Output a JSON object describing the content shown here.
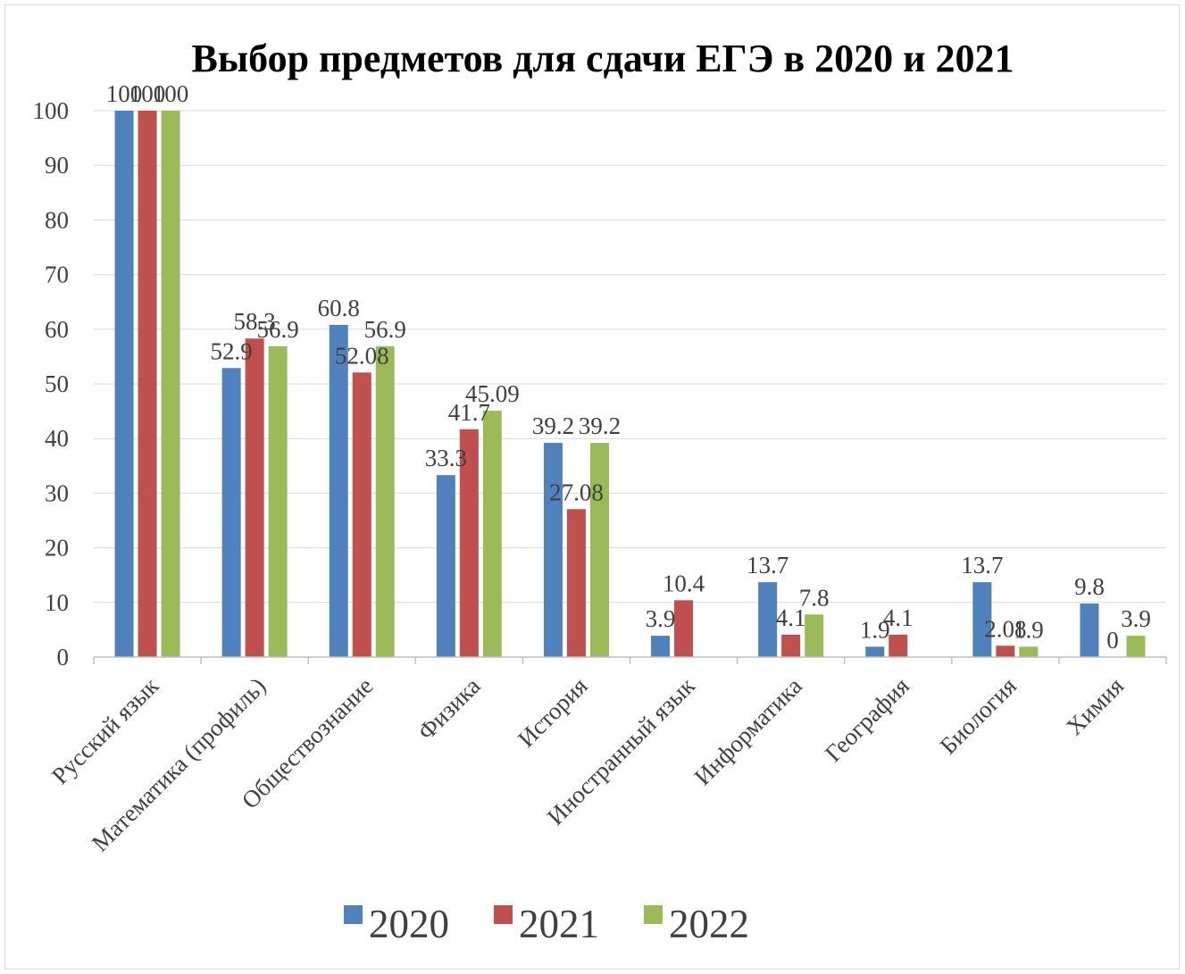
{
  "chart_data": {
    "type": "bar",
    "title": "Выбор предметов для сдачи ЕГЭ в 2020 и 2021",
    "xlabel": "",
    "ylabel": "",
    "ylim": [
      0,
      100
    ],
    "yticks": [
      0,
      10,
      20,
      30,
      40,
      50,
      60,
      70,
      80,
      90,
      100
    ],
    "grid": true,
    "legend": "bottom",
    "categories": [
      "Русский язык",
      "Математика (профиль)",
      "Обществознание",
      "Физика",
      "История",
      "Иностранный язык",
      "Информатика",
      "География",
      "Биология",
      "Химия"
    ],
    "series": [
      {
        "name": "2020",
        "color": "#4f81bd",
        "values": [
          100,
          52.9,
          60.8,
          33.3,
          39.2,
          3.9,
          13.7,
          1.9,
          13.7,
          9.8
        ],
        "labels": [
          "100",
          "52.9",
          "60.8",
          "33.3",
          "39.2",
          "3.9",
          "13.7",
          "1.9",
          "13.7",
          "9.8"
        ]
      },
      {
        "name": "2021",
        "color": "#c0504d",
        "values": [
          100,
          58.3,
          52.08,
          41.7,
          27.08,
          10.4,
          4.1,
          4.1,
          2.08,
          0
        ],
        "labels": [
          "100",
          "58.3",
          "52.08",
          "41.7",
          "27.08",
          "10.4",
          "4.1",
          "4.1",
          "2.08",
          "0"
        ]
      },
      {
        "name": "2022",
        "color": "#9bbb59",
        "values": [
          100,
          56.9,
          56.9,
          45.09,
          39.2,
          null,
          7.8,
          null,
          1.9,
          3.9
        ],
        "labels": [
          "100",
          "56.9",
          "56.9",
          "45.09",
          "39.2",
          null,
          "7.8",
          null,
          "1.9",
          "3.9"
        ]
      }
    ]
  }
}
